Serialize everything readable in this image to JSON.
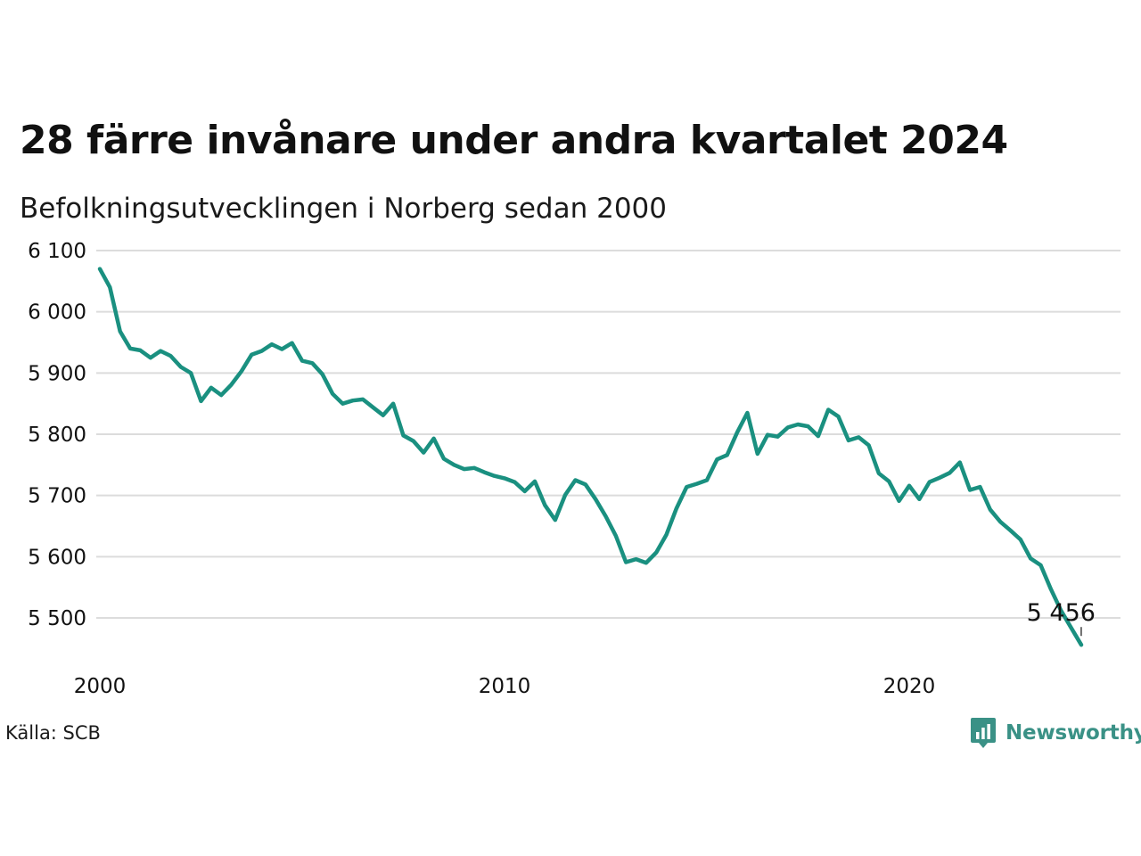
{
  "title": "28 färre invånare under andra kvartalet 2024",
  "subtitle": "Befolkningsutvecklingen i Norberg sedan 2000",
  "source": "Källa: SCB",
  "brand": {
    "name": "Newsworthy",
    "icon": "bar-chart-speech-bubble-icon",
    "color": "#3a9186"
  },
  "colors": {
    "line": "#1a9080",
    "grid": "#dcdcdc",
    "text": "#111111"
  },
  "chart_data": {
    "type": "line",
    "title": "28 färre invånare under andra kvartalet 2024",
    "subtitle": "Befolkningsutvecklingen i Norberg sedan 2000",
    "xlabel": "",
    "ylabel": "",
    "xlim": [
      2000,
      2025
    ],
    "ylim": [
      5450,
      6100
    ],
    "yticks": [
      5500,
      5600,
      5700,
      5800,
      5900,
      6000,
      6100
    ],
    "ytick_labels": [
      "5 500",
      "5 600",
      "5 700",
      "5 800",
      "5 900",
      "6 000",
      "6 100"
    ],
    "xticks": [
      2000,
      2010,
      2020
    ],
    "xtick_labels": [
      "2000",
      "2010",
      "2020"
    ],
    "grid": true,
    "end_label": "5 456",
    "series": [
      {
        "x": [
          2000.0,
          2000.25,
          2000.5,
          2000.75,
          2001.0,
          2001.25,
          2001.5,
          2001.75,
          2002.0,
          2002.25,
          2002.5,
          2002.75,
          2003.0,
          2003.25,
          2003.5,
          2003.75,
          2004.0,
          2004.25,
          2004.5,
          2004.75,
          2005.0,
          2005.25,
          2005.5,
          2005.75,
          2006.0,
          2006.25,
          2006.5,
          2006.75,
          2007.0,
          2007.25,
          2007.5,
          2007.75,
          2008.0,
          2008.25,
          2008.5,
          2008.75,
          2009.0,
          2009.25,
          2009.5,
          2009.75,
          2010.0,
          2010.25,
          2010.5,
          2010.75,
          2011.0,
          2011.25,
          2011.5,
          2011.75,
          2012.0,
          2012.25,
          2012.5,
          2012.75,
          2013.0,
          2013.25,
          2013.5,
          2013.75,
          2014.0,
          2014.25,
          2014.5,
          2014.75,
          2015.0,
          2015.25,
          2015.5,
          2015.75,
          2016.0,
          2016.25,
          2016.5,
          2016.75,
          2017.0,
          2017.25,
          2017.5,
          2017.75,
          2018.0,
          2018.25,
          2018.5,
          2018.75,
          2019.0,
          2019.25,
          2019.5,
          2019.75,
          2020.0,
          2020.25,
          2020.5,
          2020.75,
          2021.0,
          2021.25,
          2021.5,
          2021.75,
          2022.0,
          2022.25,
          2022.5,
          2022.75,
          2023.0,
          2023.25,
          2023.5,
          2023.75,
          2024.0,
          2024.25
        ],
        "values": [
          6070,
          6040,
          5968,
          5940,
          5937,
          5925,
          5936,
          5928,
          5910,
          5900,
          5854,
          5876,
          5864,
          5881,
          5903,
          5930,
          5936,
          5947,
          5939,
          5949,
          5920,
          5916,
          5898,
          5866,
          5850,
          5855,
          5857,
          5844,
          5831,
          5850,
          5798,
          5789,
          5770,
          5793,
          5760,
          5750,
          5743,
          5745,
          5738,
          5732,
          5728,
          5722,
          5707,
          5723,
          5684,
          5660,
          5701,
          5725,
          5718,
          5694,
          5666,
          5634,
          5591,
          5596,
          5590,
          5607,
          5636,
          5679,
          5714,
          5719,
          5725,
          5759,
          5766,
          5803,
          5835,
          5768,
          5799,
          5796,
          5811,
          5816,
          5813,
          5797,
          5840,
          5829,
          5790,
          5795,
          5782,
          5736,
          5723,
          5691,
          5716,
          5694,
          5722,
          5729,
          5737,
          5754,
          5709,
          5714,
          5677,
          5657,
          5643,
          5628,
          5597,
          5586,
          5547,
          5512,
          5484,
          5456
        ]
      }
    ]
  }
}
